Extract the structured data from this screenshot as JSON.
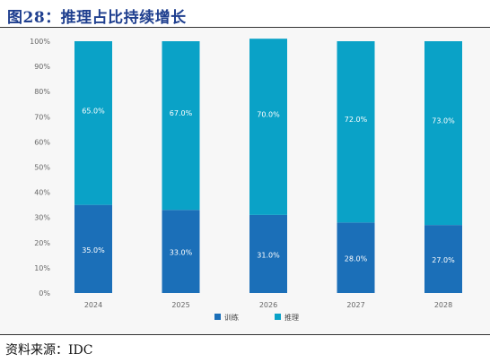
{
  "figure": {
    "title": "图28：推理占比持续增长",
    "source": "资料来源：IDC"
  },
  "colors": {
    "training": "#1b6fb8",
    "inference": "#0aa2c7",
    "title": "#1f3f8f",
    "axis_text": "#666666",
    "gridline": "#dddddd"
  },
  "chart_data": {
    "type": "bar",
    "stacked": true,
    "categories": [
      "2024",
      "2025",
      "2026",
      "2027",
      "2028"
    ],
    "series": [
      {
        "name": "训练",
        "values": [
          35.0,
          33.0,
          31.0,
          28.0,
          27.0
        ],
        "labels": [
          "35.0%",
          "33.0%",
          "31.0%",
          "28.0%",
          "27.0%"
        ]
      },
      {
        "name": "推理",
        "values": [
          65.0,
          67.0,
          70.0,
          72.0,
          73.0
        ],
        "labels": [
          "65.0%",
          "67.0%",
          "70.0%",
          "72.0%",
          "73.0%"
        ]
      }
    ],
    "yticks": [
      "0%",
      "10%",
      "20%",
      "30%",
      "40%",
      "50%",
      "60%",
      "70%",
      "80%",
      "90%",
      "100%"
    ],
    "ylim": [
      0,
      100
    ],
    "xlabel": "",
    "ylabel": "",
    "grid": false,
    "legend_position": "bottom-center"
  }
}
